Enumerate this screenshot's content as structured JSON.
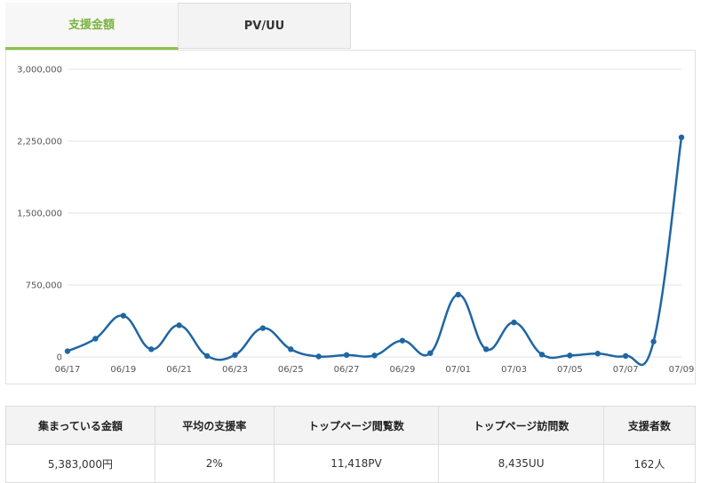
{
  "tabs": [
    {
      "label": "支援金額",
      "active": true
    },
    {
      "label": "PV/UU",
      "active": false
    }
  ],
  "colors": {
    "accent": "#8bc34a",
    "series": "#1f66a3",
    "grid": "#e3e3e3"
  },
  "chart_data": {
    "type": "line",
    "smooth": true,
    "grid": true,
    "ylim": [
      0,
      3000000
    ],
    "yticks": [
      0,
      750000,
      1500000,
      2250000,
      3000000
    ],
    "ytick_labels": [
      "0",
      "750,000",
      "1,500,000",
      "2,250,000",
      "3,000,000"
    ],
    "x": [
      "06/17",
      "06/18",
      "06/19",
      "06/20",
      "06/21",
      "06/22",
      "06/23",
      "06/24",
      "06/25",
      "06/26",
      "06/27",
      "06/28",
      "06/29",
      "06/30",
      "07/01",
      "07/02",
      "07/03",
      "07/04",
      "07/05",
      "07/06",
      "07/07",
      "07/08",
      "07/09"
    ],
    "xtick_labels": [
      "06/17",
      "06/19",
      "06/21",
      "06/23",
      "06/25",
      "06/27",
      "06/29",
      "07/01",
      "07/03",
      "07/05",
      "07/07",
      "07/09"
    ],
    "series": [
      {
        "values": [
          60000,
          190000,
          430000,
          80000,
          330000,
          10000,
          20000,
          300000,
          80000,
          5000,
          20000,
          15000,
          170000,
          40000,
          650000,
          80000,
          360000,
          25000,
          15000,
          35000,
          10000,
          160000,
          2290000
        ]
      }
    ]
  },
  "stats": {
    "headers": [
      "集まっている金額",
      "平均の支援率",
      "トップページ閲覧数",
      "トップページ訪問数",
      "支援者数"
    ],
    "values": [
      "5,383,000円",
      "2%",
      "11,418PV",
      "8,435UU",
      "162人"
    ]
  }
}
